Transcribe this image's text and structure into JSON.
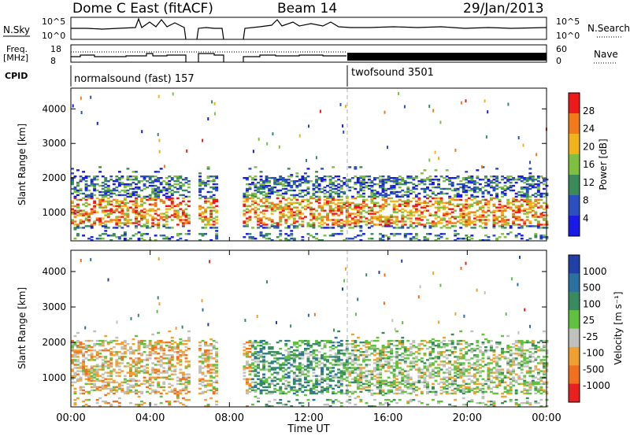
{
  "header": {
    "station": "Dome C East (fitACF)",
    "beam": "Beam 14",
    "date": "29/Jan/2013"
  },
  "summary_panels": {
    "nsky_label": "N.Sky",
    "nsky_ticks": [
      "10^5",
      "10^0"
    ],
    "nsearch_label": "N.Search",
    "nsearch_ticks": [
      "10^5",
      "10^0"
    ],
    "freq_label_line1": "Freq.",
    "freq_label_line2": "[MHz]",
    "freq_ticks": [
      "18",
      "8"
    ],
    "nave_label": "Nave",
    "nave_ticks": [
      "60",
      "0"
    ],
    "cpid_label": "CPID",
    "cpid_segments": [
      {
        "label": "normalsound (fast) 157",
        "start_hour": 0
      },
      {
        "label": "twofsound 3501",
        "start_hour": 14
      }
    ]
  },
  "power_panel": {
    "ylabel": "Slant Range [km]",
    "yticks": [
      "1000",
      "2000",
      "3000",
      "4000"
    ],
    "colorbar_label": "Power [dB]",
    "colorbar_ticks": [
      "4",
      "8",
      "12",
      "16",
      "20",
      "24",
      "28"
    ],
    "colors": [
      "#1a1ae6",
      "#2a4fbf",
      "#3a8a5a",
      "#7fbf3f",
      "#f2b21a",
      "#f27a1a",
      "#ee1a1a"
    ]
  },
  "velocity_panel": {
    "ylabel": "Slant Range [km]",
    "yticks": [
      "1000",
      "2000",
      "3000",
      "4000"
    ],
    "colorbar_label": "Velocity [m s⁻¹]",
    "colorbar_ticks": [
      "1000",
      "500",
      "100",
      "25",
      "-25",
      "-100",
      "-500",
      "-1000"
    ],
    "colors": [
      "#2040a8",
      "#2a70a0",
      "#3a8a60",
      "#60c040",
      "#c0c0bc",
      "#f0a030",
      "#f07020",
      "#e82020"
    ]
  },
  "xaxis": {
    "label": "Time UT",
    "ticks": [
      "00:00",
      "04:00",
      "08:00",
      "12:00",
      "16:00",
      "20:00",
      "00:00"
    ]
  },
  "chart_data": {
    "type": "heatmap",
    "title": "Dome C East (fitACF)   Beam 14   29/Jan/2013",
    "xlabel": "Time UT",
    "ylabel": "Slant Range [km]",
    "xlim_hours": [
      0,
      24
    ],
    "ylim_km": [
      180,
      4600
    ],
    "data_gaps_hours": [
      [
        5.9,
        6.3
      ],
      [
        7.3,
        8.6
      ]
    ],
    "cpid_change_hour": 14,
    "echo_region": {
      "range_km": [
        500,
        2100
      ],
      "hours": [
        0,
        24
      ]
    },
    "power_colorbar_db": [
      4,
      8,
      12,
      16,
      20,
      24,
      28
    ],
    "velocity_colorbar_ms": [
      1000,
      500,
      100,
      25,
      -25,
      -100,
      -500,
      -1000
    ]
  }
}
